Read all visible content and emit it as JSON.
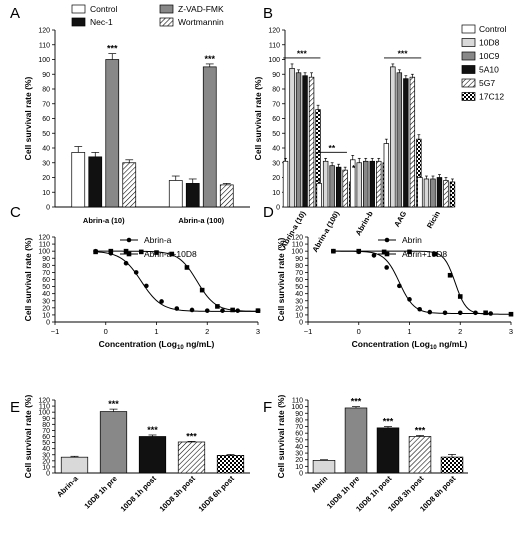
{
  "figure": {
    "colors": {
      "ink": "#000000",
      "light_gray": "#d9d9d9",
      "mid_gray": "#888888",
      "black": "#111111"
    }
  },
  "chart_data": [
    {
      "panel": "A",
      "type": "bar",
      "ylabel": "Cell survival rate (%)",
      "ylim": [
        0,
        120
      ],
      "yticks": [
        0,
        10,
        20,
        30,
        40,
        50,
        60,
        70,
        80,
        90,
        100,
        110,
        120
      ],
      "legend_position": "top",
      "categories": [
        "Abrin-a (10)",
        "Abrin-a (100)"
      ],
      "series": [
        {
          "name": "Control",
          "fill": "white",
          "values": [
            37,
            18
          ],
          "errors": [
            4,
            3
          ]
        },
        {
          "name": "Nec-1",
          "fill": "black",
          "values": [
            34,
            16
          ],
          "errors": [
            3,
            3
          ]
        },
        {
          "name": "Z-VAD-FMK",
          "fill": "gray",
          "values": [
            100,
            95
          ],
          "errors": [
            4,
            2
          ]
        },
        {
          "name": "Wortmannin",
          "fill": "hatch",
          "values": [
            30,
            15
          ],
          "errors": [
            2,
            1
          ]
        }
      ],
      "annotations": [
        {
          "category": 0,
          "series": 2,
          "text": "***"
        },
        {
          "category": 1,
          "series": 2,
          "text": "***"
        }
      ]
    },
    {
      "panel": "B",
      "type": "bar",
      "ylabel": "Cell survival rate (%)",
      "ylim": [
        0,
        120
      ],
      "yticks": [
        0,
        10,
        20,
        30,
        40,
        50,
        60,
        70,
        80,
        90,
        100,
        110,
        120
      ],
      "legend_position": "right",
      "categories": [
        "Abrin-a (10)",
        "Abrin-a (100)",
        "Abrin-b",
        "AAG",
        "Ricin"
      ],
      "series": [
        {
          "name": "Control",
          "fill": "white",
          "values": [
            31,
            16,
            32,
            43,
            20
          ],
          "errors": [
            2,
            2,
            3,
            3,
            2
          ]
        },
        {
          "name": "10D8",
          "fill": "light",
          "values": [
            94,
            31,
            30,
            95,
            19
          ],
          "errors": [
            3,
            2,
            3,
            2,
            2
          ]
        },
        {
          "name": "10C9",
          "fill": "gray",
          "values": [
            91,
            28,
            31,
            91,
            19
          ],
          "errors": [
            2,
            2,
            2,
            2,
            2
          ]
        },
        {
          "name": "5A10",
          "fill": "black",
          "values": [
            89,
            27,
            31,
            87,
            20
          ],
          "errors": [
            2,
            2,
            2,
            2,
            2
          ]
        },
        {
          "name": "5G7",
          "fill": "hatch",
          "values": [
            88,
            25,
            31,
            88,
            18
          ],
          "errors": [
            3,
            2,
            2,
            2,
            2
          ]
        },
        {
          "name": "17C12",
          "fill": "check",
          "values": [
            66,
            17,
            30,
            46,
            17
          ],
          "errors": [
            3,
            2,
            3,
            3,
            2
          ]
        }
      ],
      "annotations": [
        {
          "category": 0,
          "text": "***",
          "bracket": true
        },
        {
          "category": 1,
          "text": "**",
          "bracket": true
        },
        {
          "category": 1,
          "text": "*",
          "bracket": false
        },
        {
          "category": 3,
          "text": "***",
          "bracket": true
        }
      ]
    },
    {
      "panel": "C",
      "type": "line",
      "xlabel_main": "Concentration (Log",
      "xlabel_sub": "10",
      "xlabel_tail": " ng/mL)",
      "ylabel": "Cell survival rate (%)",
      "xlim": [
        -1,
        3
      ],
      "xticks": [
        -1,
        0,
        1,
        2,
        3
      ],
      "ylim": [
        0,
        120
      ],
      "yticks": [
        0,
        10,
        20,
        30,
        40,
        50,
        60,
        70,
        80,
        90,
        100,
        110,
        120
      ],
      "legend_position": "top-right",
      "series": [
        {
          "name": "Abrin-a",
          "marker": "circle",
          "ec50": 0.7,
          "hill": 2.2,
          "top": 100,
          "bottom": 15,
          "x": [
            -0.2,
            0.1,
            0.4,
            0.6,
            0.8,
            1.1,
            1.4,
            1.7,
            2.0,
            2.3,
            2.6,
            3.0
          ],
          "y": [
            100,
            97,
            83,
            70,
            51,
            29,
            19,
            17,
            16,
            16,
            16,
            16
          ]
        },
        {
          "name": "Abrin-a+10D8",
          "marker": "square",
          "ec50": 1.8,
          "hill": 2.4,
          "top": 100,
          "bottom": 15,
          "x": [
            -0.2,
            0.1,
            0.4,
            0.7,
            1.0,
            1.3,
            1.6,
            1.9,
            2.2,
            2.5,
            3.0
          ],
          "y": [
            99,
            100,
            100,
            99,
            98,
            96,
            77,
            45,
            22,
            17,
            16
          ]
        }
      ]
    },
    {
      "panel": "D",
      "type": "line",
      "xlabel_main": "Concentration (Log",
      "xlabel_sub": "10",
      "xlabel_tail": " ng/mL)",
      "ylabel": "Cell survival rate (%)",
      "xlim": [
        -1,
        3
      ],
      "xticks": [
        -1,
        0,
        1,
        2,
        3
      ],
      "ylim": [
        0,
        120
      ],
      "yticks": [
        0,
        10,
        20,
        30,
        40,
        50,
        60,
        70,
        80,
        90,
        100,
        110,
        120
      ],
      "legend_position": "top-right",
      "series": [
        {
          "name": "Abrin",
          "marker": "circle",
          "ec50": 0.8,
          "hill": 3.0,
          "top": 100,
          "bottom": 12,
          "x": [
            -0.5,
            0.0,
            0.3,
            0.55,
            0.8,
            1.0,
            1.2,
            1.4,
            1.7,
            2.0,
            2.3,
            2.6
          ],
          "y": [
            100,
            99,
            94,
            77,
            51,
            32,
            18,
            14,
            13,
            13,
            13,
            12
          ]
        },
        {
          "name": "Abrin+10D8",
          "marker": "square",
          "ec50": 1.9,
          "hill": 4.0,
          "top": 100,
          "bottom": 11,
          "x": [
            -0.5,
            0.0,
            0.5,
            1.0,
            1.5,
            1.8,
            2.0,
            2.5,
            3.0
          ],
          "y": [
            100,
            100,
            99,
            99,
            96,
            66,
            36,
            13,
            11
          ]
        }
      ]
    },
    {
      "panel": "E",
      "type": "bar",
      "ylabel": "Cell survival rate (%)",
      "ylim": [
        0,
        120
      ],
      "yticks": [
        0,
        10,
        20,
        30,
        40,
        50,
        60,
        70,
        80,
        90,
        100,
        110,
        120
      ],
      "categories": [
        "Abrin-a",
        "10D8 1h pre",
        "10D8 1h post",
        "10D8 3h post",
        "10D8 6h post"
      ],
      "fills": [
        "light",
        "gray",
        "black",
        "hatch",
        "check"
      ],
      "values": [
        26,
        101,
        60,
        51,
        29
      ],
      "errors": [
        1.5,
        4,
        2.5,
        1,
        1.5
      ],
      "annotations": [
        "",
        "***",
        "***",
        "***",
        ""
      ]
    },
    {
      "panel": "F",
      "type": "bar",
      "ylabel": "Cell survival rate (%)",
      "ylim": [
        0,
        110
      ],
      "yticks": [
        0,
        10,
        20,
        30,
        40,
        50,
        60,
        70,
        80,
        90,
        100,
        110
      ],
      "categories": [
        "Abrin",
        "10D8 1h pre",
        "10D8 1h post",
        "10D8 3h post",
        "10D8 6h post"
      ],
      "fills": [
        "light",
        "gray",
        "black",
        "hatch",
        "check"
      ],
      "values": [
        19,
        98,
        68,
        55,
        24
      ],
      "errors": [
        1,
        2,
        2,
        1.5,
        4
      ],
      "annotations": [
        "",
        "***",
        "***",
        "***",
        ""
      ]
    }
  ]
}
